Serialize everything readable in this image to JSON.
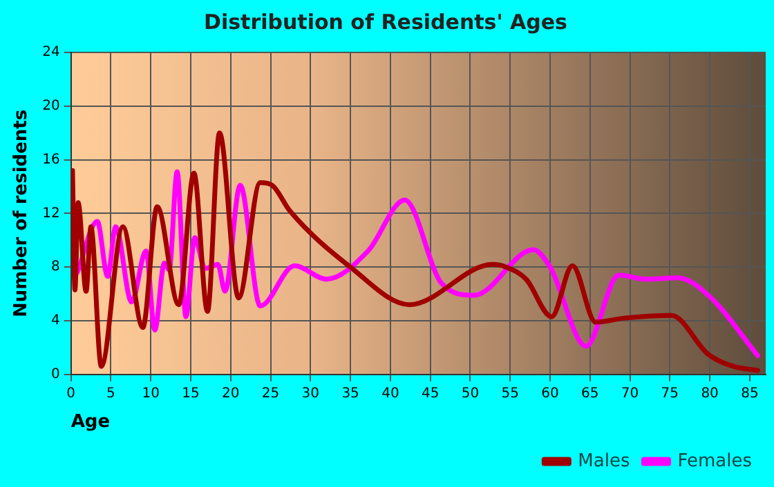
{
  "chart_data": {
    "type": "line",
    "title": "Distribution of Residents' Ages",
    "xlabel": "Age",
    "ylabel": "Number of residents",
    "xlim": [
      0,
      87
    ],
    "xticks": [
      0,
      5,
      10,
      15,
      20,
      25,
      30,
      35,
      40,
      45,
      50,
      55,
      60,
      65,
      70,
      75,
      80,
      85
    ],
    "ylim": [
      0,
      24
    ],
    "yticks": [
      0,
      4,
      8,
      12,
      16,
      20,
      24
    ],
    "grid": true,
    "legend": "bottom right",
    "marker": "none",
    "line_style": "solid",
    "series": [
      {
        "name": "Males",
        "color": "#a00000",
        "x": [
          0.2,
          0.5,
          0.9,
          1.9,
          2.5,
          3.8,
          6.5,
          9,
          10.8,
          13.5,
          15.4,
          17.1,
          18.6,
          21,
          23.7,
          25.2,
          27.4,
          35,
          42.4,
          52.8,
          54.5,
          57,
          60.2,
          62.8,
          65.7,
          69.3,
          75.2,
          79.8,
          83,
          86
        ],
        "values": [
          15.2,
          6.3,
          12.8,
          6.2,
          11,
          0.6,
          11,
          3.5,
          12.5,
          5.2,
          15,
          4.7,
          18,
          5.7,
          14.3,
          14.1,
          12.2,
          8,
          5.2,
          8.2,
          8,
          7.1,
          4.3,
          8.1,
          3.9,
          4.2,
          4.4,
          1.5,
          0.6,
          0.3
        ]
      },
      {
        "name": "Females",
        "color": "#ff00ff",
        "x": [
          0.8,
          3.3,
          4.6,
          5.6,
          7.6,
          9.4,
          10.5,
          11.7,
          12.3,
          13.3,
          14.4,
          15.5,
          16.8,
          18.4,
          19.3,
          21.2,
          23.7,
          28,
          32,
          37.2,
          41.8,
          46.4,
          50.5,
          57.9,
          60,
          64.5,
          68.6,
          72,
          76,
          80,
          86
        ],
        "values": [
          7.6,
          11.4,
          7.3,
          11,
          5.4,
          9.2,
          3.3,
          8.3,
          7.8,
          15.1,
          4.3,
          10.2,
          7.9,
          8.2,
          6.2,
          14.1,
          5.1,
          8.1,
          7.1,
          9.2,
          13,
          6.8,
          5.9,
          9.3,
          8,
          2.1,
          7.4,
          7.1,
          7.2,
          5.8,
          1.4
        ]
      }
    ]
  }
}
